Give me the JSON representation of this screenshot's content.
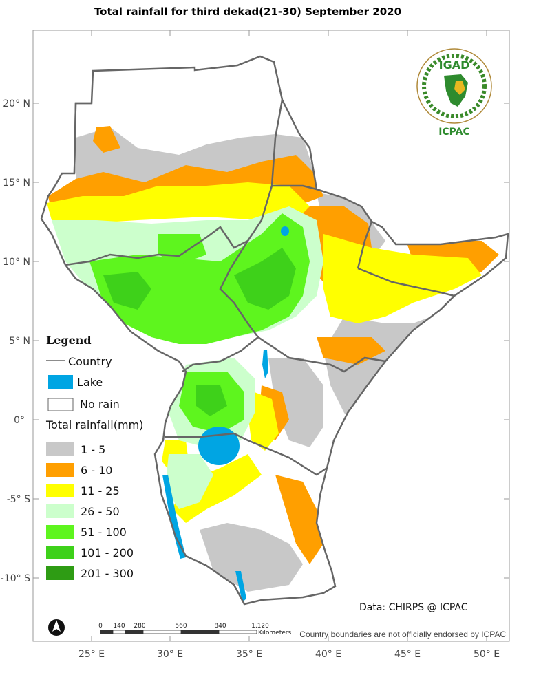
{
  "title": "Total rainfall for  third dekad(21-30) September 2020",
  "axes": {
    "lat_labels": [
      "20° N",
      "15° N",
      "10° N",
      "5° N",
      "0°",
      "-5° S",
      "-10° S"
    ],
    "lon_labels": [
      "25° E",
      "30° E",
      "35° E",
      "40° E",
      "45° E",
      "50° E"
    ]
  },
  "legend": {
    "heading": "Legend",
    "country_label": "Country",
    "lake_label": "Lake",
    "no_rain_label": "No rain",
    "rainfall_title": "Total rainfall(mm)",
    "classes": [
      {
        "label": "1 - 5",
        "color": "#c8c8c8"
      },
      {
        "label": "6 - 10",
        "color": "#ff9f00"
      },
      {
        "label": "11 - 25",
        "color": "#ffff00"
      },
      {
        "label": "26 - 50",
        "color": "#ccffcc"
      },
      {
        "label": "51 - 100",
        "color": "#5ef51e"
      },
      {
        "label": "101 - 200",
        "color": "#3ed11a"
      },
      {
        "label": "201 - 300",
        "color": "#2e9c14"
      }
    ],
    "lake_color": "#00a5e3",
    "country_line_color": "#666666"
  },
  "logo": {
    "name": "IGAD",
    "caption": "ICPAC"
  },
  "scale_bar": {
    "ticks": [
      "0",
      "140",
      "280",
      "560",
      "840",
      "1,120"
    ],
    "unit": "Kilometers"
  },
  "data_source": "Data: CHIRPS @ ICPAC",
  "disclaimer": "Country boundaries are not officially endorsed by ICPAC",
  "north_arrow_icon": "north-arrow-icon"
}
